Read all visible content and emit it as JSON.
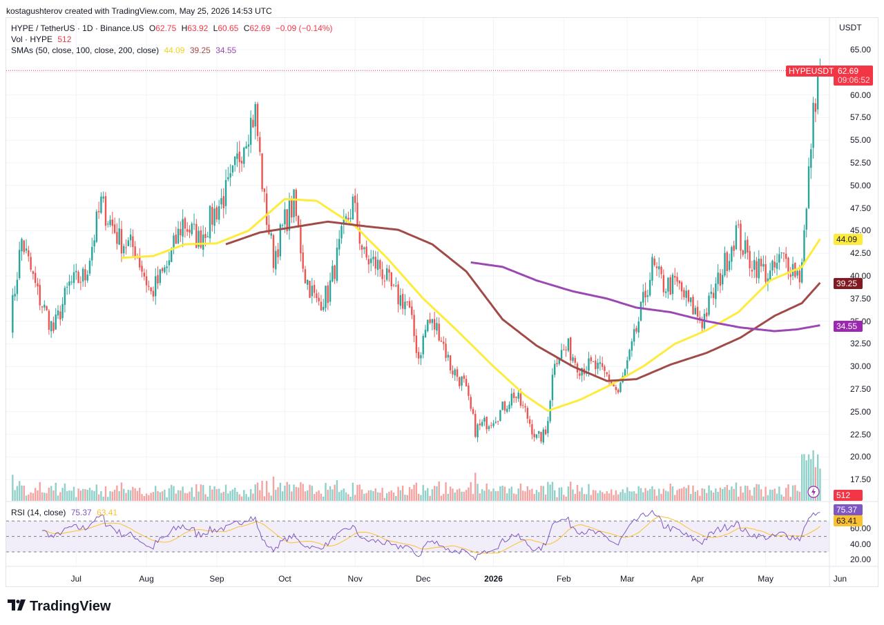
{
  "header": {
    "credit": "kostagushterov created with TradingView.com, May 25, 2026 14:53 UTC"
  },
  "legend": {
    "symbol": "HYPE / TetherUS · 1D · Binance.US",
    "o_label": "O",
    "o": "62.75",
    "h_label": "H",
    "h": "63.92",
    "l_label": "L",
    "l": "60.65",
    "c_label": "C",
    "c": "62.69",
    "change": "−0.09 (−0.14%)",
    "vol_label": "Vol · HYPE",
    "vol": "512",
    "sma_label": "SMAs (50, close, 100, close, 200, close)",
    "sma50": "44.09",
    "sma100": "39.25",
    "sma200": "34.55",
    "rsi_label": "RSI (14, close)",
    "rsi": "75.37",
    "rsi_ma": "63.41"
  },
  "currency": "USDT",
  "price_tags": {
    "symbol": "HYPEUSDT",
    "last": "62.69",
    "countdown": "09:06:52",
    "sma50": "44.09",
    "sma100": "39.25",
    "sma200": "34.55",
    "volume": "512",
    "rsi": "75.37",
    "rsi_ma": "63.41"
  },
  "colors": {
    "up": "#26a69a",
    "down": "#ef5350",
    "sma50": "#ffeb3b",
    "sma100": "#a04b48",
    "sma200": "#9c48b2",
    "rsi": "#7e57c2",
    "rsi_ma": "#fbc02d",
    "rsi_band": "#ede7f6",
    "last_tag": "#f23645"
  },
  "logo": "TradingView",
  "chart_data": {
    "type": "candlestick",
    "title": "HYPE / TetherUS · 1D · Binance.US",
    "price_axis": {
      "ticks": [
        "65.00",
        "62.50",
        "60.00",
        "57.50",
        "55.00",
        "52.50",
        "50.00",
        "47.50",
        "45.00",
        "42.50",
        "40.00",
        "37.50",
        "35.00",
        "32.50",
        "30.00",
        "27.50",
        "25.00",
        "22.50",
        "20.00",
        "17.50"
      ],
      "min": 15.4,
      "max": 66.3
    },
    "rsi_axis": {
      "ticks": [
        "60.00",
        "40.00",
        "20.00"
      ],
      "bands": [
        30,
        70
      ]
    },
    "time_axis": {
      "labels": [
        "Jul",
        "Aug",
        "Sep",
        "Oct",
        "Nov",
        "Dec",
        "2026",
        "Feb",
        "Mar",
        "Apr",
        "May",
        "Jun"
      ]
    },
    "close_anchors": [
      {
        "t": "2025-06-02",
        "v": 35
      },
      {
        "t": "2025-06-07",
        "v": 44
      },
      {
        "t": "2025-06-14",
        "v": 38
      },
      {
        "t": "2025-06-21",
        "v": 34
      },
      {
        "t": "2025-06-28",
        "v": 39
      },
      {
        "t": "2025-07-05",
        "v": 40
      },
      {
        "t": "2025-07-12",
        "v": 48
      },
      {
        "t": "2025-07-20",
        "v": 44
      },
      {
        "t": "2025-07-27",
        "v": 43
      },
      {
        "t": "2025-08-03",
        "v": 38
      },
      {
        "t": "2025-08-10",
        "v": 41
      },
      {
        "t": "2025-08-17",
        "v": 46
      },
      {
        "t": "2025-08-24",
        "v": 44
      },
      {
        "t": "2025-08-31",
        "v": 47
      },
      {
        "t": "2025-09-07",
        "v": 50
      },
      {
        "t": "2025-09-14",
        "v": 56
      },
      {
        "t": "2025-09-18",
        "v": 58
      },
      {
        "t": "2025-09-22",
        "v": 48
      },
      {
        "t": "2025-09-26",
        "v": 42
      },
      {
        "t": "2025-10-01",
        "v": 46
      },
      {
        "t": "2025-10-05",
        "v": 48
      },
      {
        "t": "2025-10-10",
        "v": 40
      },
      {
        "t": "2025-10-15",
        "v": 37
      },
      {
        "t": "2025-10-20",
        "v": 38
      },
      {
        "t": "2025-10-27",
        "v": 45
      },
      {
        "t": "2025-10-31",
        "v": 48
      },
      {
        "t": "2025-11-05",
        "v": 42
      },
      {
        "t": "2025-11-12",
        "v": 41
      },
      {
        "t": "2025-11-18",
        "v": 38
      },
      {
        "t": "2025-11-24",
        "v": 37
      },
      {
        "t": "2025-11-29",
        "v": 31
      },
      {
        "t": "2025-12-03",
        "v": 35
      },
      {
        "t": "2025-12-08",
        "v": 34
      },
      {
        "t": "2025-12-13",
        "v": 30
      },
      {
        "t": "2025-12-19",
        "v": 28
      },
      {
        "t": "2025-12-24",
        "v": 23
      },
      {
        "t": "2025-12-30",
        "v": 24
      },
      {
        "t": "2026-01-04",
        "v": 25
      },
      {
        "t": "2026-01-10",
        "v": 27
      },
      {
        "t": "2026-01-15",
        "v": 25
      },
      {
        "t": "2026-01-20",
        "v": 22
      },
      {
        "t": "2026-01-24",
        "v": 22.5
      },
      {
        "t": "2026-01-28",
        "v": 31
      },
      {
        "t": "2026-02-03",
        "v": 32
      },
      {
        "t": "2026-02-08",
        "v": 30
      },
      {
        "t": "2026-02-14",
        "v": 30
      },
      {
        "t": "2026-02-20",
        "v": 29
      },
      {
        "t": "2026-02-25",
        "v": 27
      },
      {
        "t": "2026-03-02",
        "v": 31
      },
      {
        "t": "2026-03-07",
        "v": 36
      },
      {
        "t": "2026-03-12",
        "v": 41
      },
      {
        "t": "2026-03-17",
        "v": 39
      },
      {
        "t": "2026-03-23",
        "v": 39
      },
      {
        "t": "2026-03-28",
        "v": 37
      },
      {
        "t": "2026-04-03",
        "v": 35
      },
      {
        "t": "2026-04-08",
        "v": 38
      },
      {
        "t": "2026-04-14",
        "v": 42
      },
      {
        "t": "2026-04-18",
        "v": 45
      },
      {
        "t": "2026-04-23",
        "v": 42
      },
      {
        "t": "2026-04-28",
        "v": 41
      },
      {
        "t": "2026-05-03",
        "v": 40
      },
      {
        "t": "2026-05-08",
        "v": 42
      },
      {
        "t": "2026-05-13",
        "v": 41
      },
      {
        "t": "2026-05-16",
        "v": 40
      },
      {
        "t": "2026-05-19",
        "v": 47
      },
      {
        "t": "2026-05-21",
        "v": 55
      },
      {
        "t": "2026-05-23",
        "v": 60
      },
      {
        "t": "2026-05-25",
        "v": 62.69
      }
    ],
    "sma50": [
      {
        "t": "2025-07-21",
        "v": 42
      },
      {
        "t": "2025-08-04",
        "v": 42.2
      },
      {
        "t": "2025-08-18",
        "v": 43.5
      },
      {
        "t": "2025-09-01",
        "v": 43.6
      },
      {
        "t": "2025-09-15",
        "v": 45
      },
      {
        "t": "2025-10-01",
        "v": 48.5
      },
      {
        "t": "2025-10-15",
        "v": 48.3
      },
      {
        "t": "2025-11-01",
        "v": 45.5
      },
      {
        "t": "2025-11-15",
        "v": 42
      },
      {
        "t": "2025-12-01",
        "v": 37.5
      },
      {
        "t": "2025-12-15",
        "v": 34.2
      },
      {
        "t": "2026-01-01",
        "v": 30
      },
      {
        "t": "2026-01-15",
        "v": 26.8
      },
      {
        "t": "2026-01-25",
        "v": 25.1
      },
      {
        "t": "2026-02-08",
        "v": 26.3
      },
      {
        "t": "2026-02-22",
        "v": 28
      },
      {
        "t": "2026-03-08",
        "v": 30
      },
      {
        "t": "2026-03-22",
        "v": 32.5
      },
      {
        "t": "2026-04-05",
        "v": 34
      },
      {
        "t": "2026-04-19",
        "v": 36
      },
      {
        "t": "2026-05-03",
        "v": 39.5
      },
      {
        "t": "2026-05-17",
        "v": 41
      },
      {
        "t": "2026-05-25",
        "v": 44.09
      }
    ],
    "sma100": [
      {
        "t": "2025-09-05",
        "v": 43.5
      },
      {
        "t": "2025-09-20",
        "v": 44.8
      },
      {
        "t": "2025-10-05",
        "v": 45.4
      },
      {
        "t": "2025-10-20",
        "v": 46
      },
      {
        "t": "2025-11-05",
        "v": 45.5
      },
      {
        "t": "2025-11-20",
        "v": 45.1
      },
      {
        "t": "2025-12-05",
        "v": 43.5
      },
      {
        "t": "2025-12-20",
        "v": 40.5
      },
      {
        "t": "2026-01-05",
        "v": 35.2
      },
      {
        "t": "2026-01-20",
        "v": 32.3
      },
      {
        "t": "2026-02-05",
        "v": 30
      },
      {
        "t": "2026-02-20",
        "v": 28.4
      },
      {
        "t": "2026-03-05",
        "v": 28.6
      },
      {
        "t": "2026-03-20",
        "v": 30.2
      },
      {
        "t": "2026-04-05",
        "v": 31.5
      },
      {
        "t": "2026-04-20",
        "v": 33.2
      },
      {
        "t": "2026-05-05",
        "v": 35.6
      },
      {
        "t": "2026-05-17",
        "v": 37
      },
      {
        "t": "2026-05-25",
        "v": 39.25
      }
    ],
    "sma200": [
      {
        "t": "2025-12-22",
        "v": 41.5
      },
      {
        "t": "2026-01-05",
        "v": 41
      },
      {
        "t": "2026-01-20",
        "v": 39.5
      },
      {
        "t": "2026-02-05",
        "v": 38.3
      },
      {
        "t": "2026-02-20",
        "v": 37.5
      },
      {
        "t": "2026-03-05",
        "v": 36.5
      },
      {
        "t": "2026-03-20",
        "v": 36
      },
      {
        "t": "2026-04-05",
        "v": 35
      },
      {
        "t": "2026-04-20",
        "v": 34.3
      },
      {
        "t": "2026-05-05",
        "v": 33.9
      },
      {
        "t": "2026-05-15",
        "v": 34.1
      },
      {
        "t": "2026-05-25",
        "v": 34.55
      }
    ]
  }
}
